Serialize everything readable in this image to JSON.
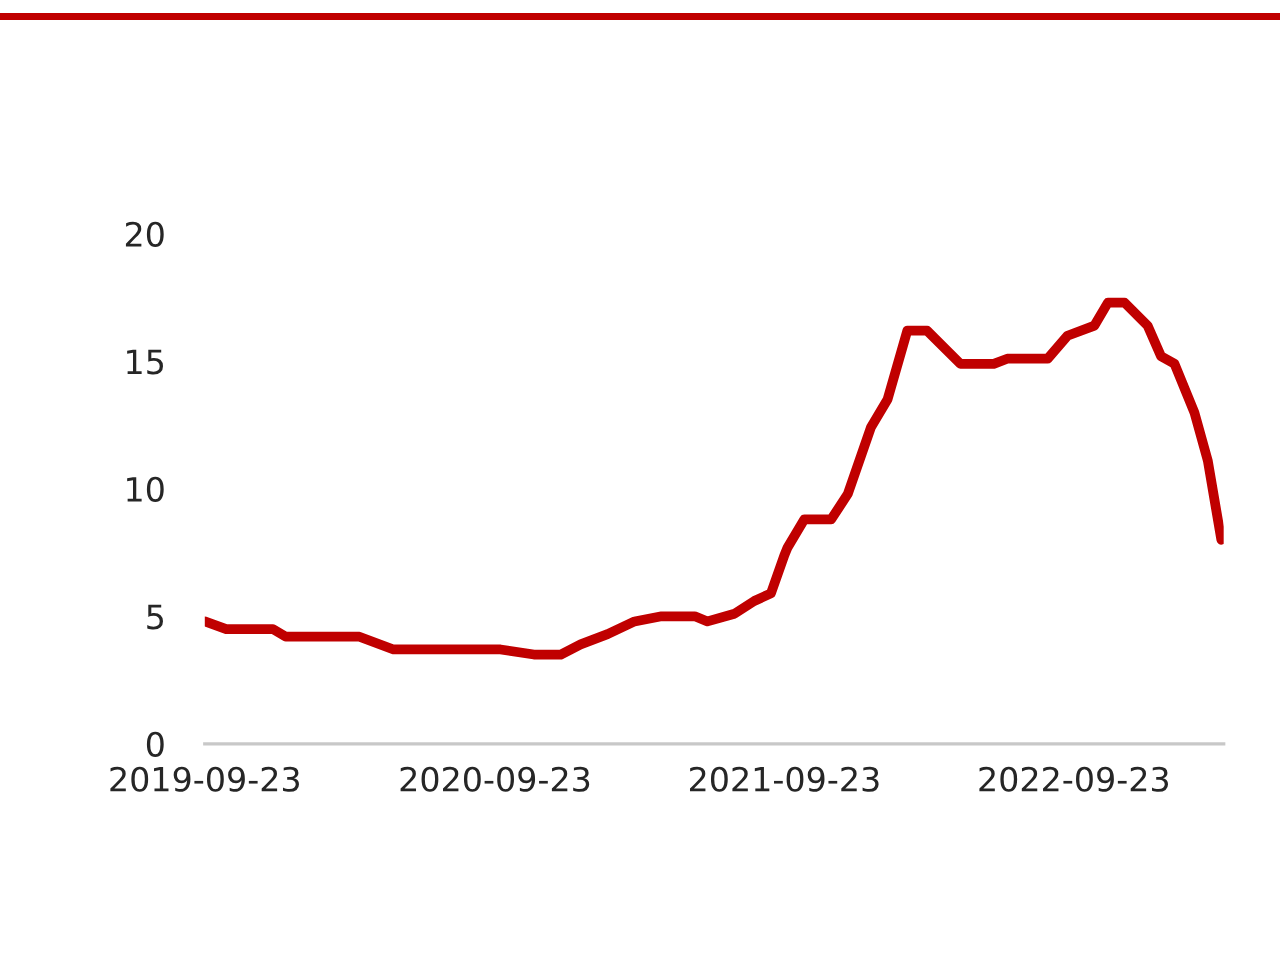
{
  "chart_data": {
    "type": "line",
    "x": [
      "2019-09-23",
      "2019-10-20",
      "2019-12-18",
      "2020-01-03",
      "2020-04-05",
      "2020-05-18",
      "2020-09-30",
      "2020-11-11",
      "2020-12-15",
      "2021-01-09",
      "2021-02-12",
      "2021-03-18",
      "2021-04-21",
      "2021-06-02",
      "2021-06-18",
      "2021-07-22",
      "2021-08-16",
      "2021-09-06",
      "2021-09-23",
      "2021-09-27",
      "2021-10-18",
      "2021-11-21",
      "2021-12-12",
      "2022-01-10",
      "2022-01-31",
      "2022-02-25",
      "2022-03-22",
      "2022-05-03",
      "2022-06-14",
      "2022-07-01",
      "2022-08-21",
      "2022-09-15",
      "2022-10-19",
      "2022-11-05",
      "2022-11-26",
      "2022-12-25",
      "2023-01-11",
      "2023-01-28",
      "2023-02-22",
      "2023-03-11",
      "2023-03-28"
    ],
    "series": [
      {
        "color": "#c00000",
        "values": [
          4.8,
          4.5,
          4.5,
          4.2,
          4.2,
          3.7,
          3.7,
          3.5,
          3.5,
          3.9,
          4.3,
          4.8,
          5.0,
          5.0,
          4.8,
          5.1,
          5.6,
          5.9,
          7.4,
          7.7,
          8.8,
          8.8,
          9.8,
          12.4,
          13.5,
          16.2,
          16.2,
          14.9,
          14.9,
          15.1,
          15.1,
          16.0,
          16.4,
          17.3,
          17.3,
          16.4,
          15.2,
          14.9,
          13.0,
          11.1,
          8.0
        ]
      }
    ],
    "xlim": [
      "2019-09-23",
      "2023-03-31"
    ],
    "xticks": [
      "2019-09-23",
      "2020-09-23",
      "2021-09-23",
      "2022-09-23"
    ],
    "ylim": [
      0,
      20
    ],
    "yticks": [
      0,
      5,
      10,
      15,
      20
    ],
    "grid": false,
    "legend": false,
    "marker": "none",
    "line_style": "solid"
  }
}
